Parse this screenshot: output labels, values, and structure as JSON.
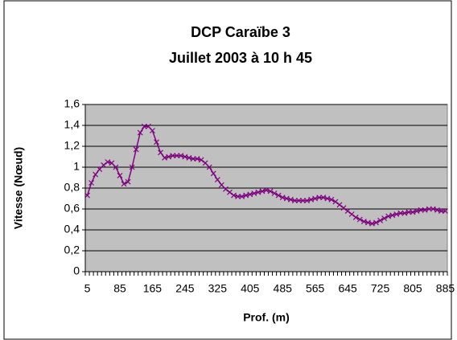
{
  "chart_data": {
    "type": "line",
    "title": [
      "DCP Caraïbe 3",
      "Juillet 2003 à 10 h 45"
    ],
    "x_label": "Prof. (m)",
    "y_label": "Vitesse (Nœud)",
    "categories": [
      "5",
      null,
      null,
      null,
      null,
      null,
      null,
      null,
      "85",
      null,
      null,
      null,
      null,
      null,
      null,
      null,
      "165",
      null,
      null,
      null,
      null,
      null,
      null,
      null,
      "245",
      null,
      null,
      null,
      null,
      null,
      null,
      null,
      "325",
      null,
      null,
      null,
      null,
      null,
      null,
      null,
      "405",
      null,
      null,
      null,
      null,
      null,
      null,
      null,
      "485",
      null,
      null,
      null,
      null,
      null,
      null,
      null,
      "565",
      null,
      null,
      null,
      null,
      null,
      null,
      null,
      "645",
      null,
      null,
      null,
      null,
      null,
      null,
      null,
      "725",
      null,
      null,
      null,
      null,
      null,
      null,
      null,
      "805",
      null,
      null,
      null,
      null,
      null,
      null,
      null,
      "885"
    ],
    "series": [
      {
        "name": "Vitesse",
        "color": "#800080",
        "values": [
          0.73,
          0.85,
          0.93,
          0.98,
          1.02,
          1.05,
          1.04,
          1.0,
          0.92,
          0.84,
          0.86,
          1.0,
          1.17,
          1.33,
          1.39,
          1.39,
          1.35,
          1.24,
          1.14,
          1.09,
          1.1,
          1.11,
          1.11,
          1.11,
          1.1,
          1.09,
          1.08,
          1.08,
          1.07,
          1.04,
          1.0,
          0.94,
          0.88,
          0.83,
          0.79,
          0.76,
          0.73,
          0.72,
          0.72,
          0.73,
          0.74,
          0.75,
          0.76,
          0.77,
          0.78,
          0.77,
          0.75,
          0.73,
          0.71,
          0.7,
          0.69,
          0.68,
          0.68,
          0.68,
          0.68,
          0.69,
          0.7,
          0.71,
          0.71,
          0.7,
          0.69,
          0.67,
          0.64,
          0.61,
          0.58,
          0.55,
          0.52,
          0.5,
          0.48,
          0.47,
          0.46,
          0.47,
          0.49,
          0.51,
          0.53,
          0.54,
          0.55,
          0.56,
          0.56,
          0.57,
          0.57,
          0.58,
          0.59,
          0.59,
          0.6,
          0.6,
          0.59,
          0.58,
          0.58
        ]
      }
    ],
    "ylim": [
      0,
      1.6
    ],
    "yticks": [
      0,
      {
        "value": 0.2,
        "label": "0,2"
      },
      {
        "value": 0.4,
        "label": "0,4"
      },
      {
        "value": 0.6,
        "label": "0,6"
      },
      {
        "value": 0.8,
        "label": "0,8"
      },
      1,
      {
        "value": 1.2,
        "label": "1,2"
      },
      {
        "value": 1.4,
        "label": "1,4"
      },
      {
        "value": 1.6,
        "label": "1,6"
      }
    ],
    "grid": true,
    "plot_background": "#c0c0c0"
  }
}
